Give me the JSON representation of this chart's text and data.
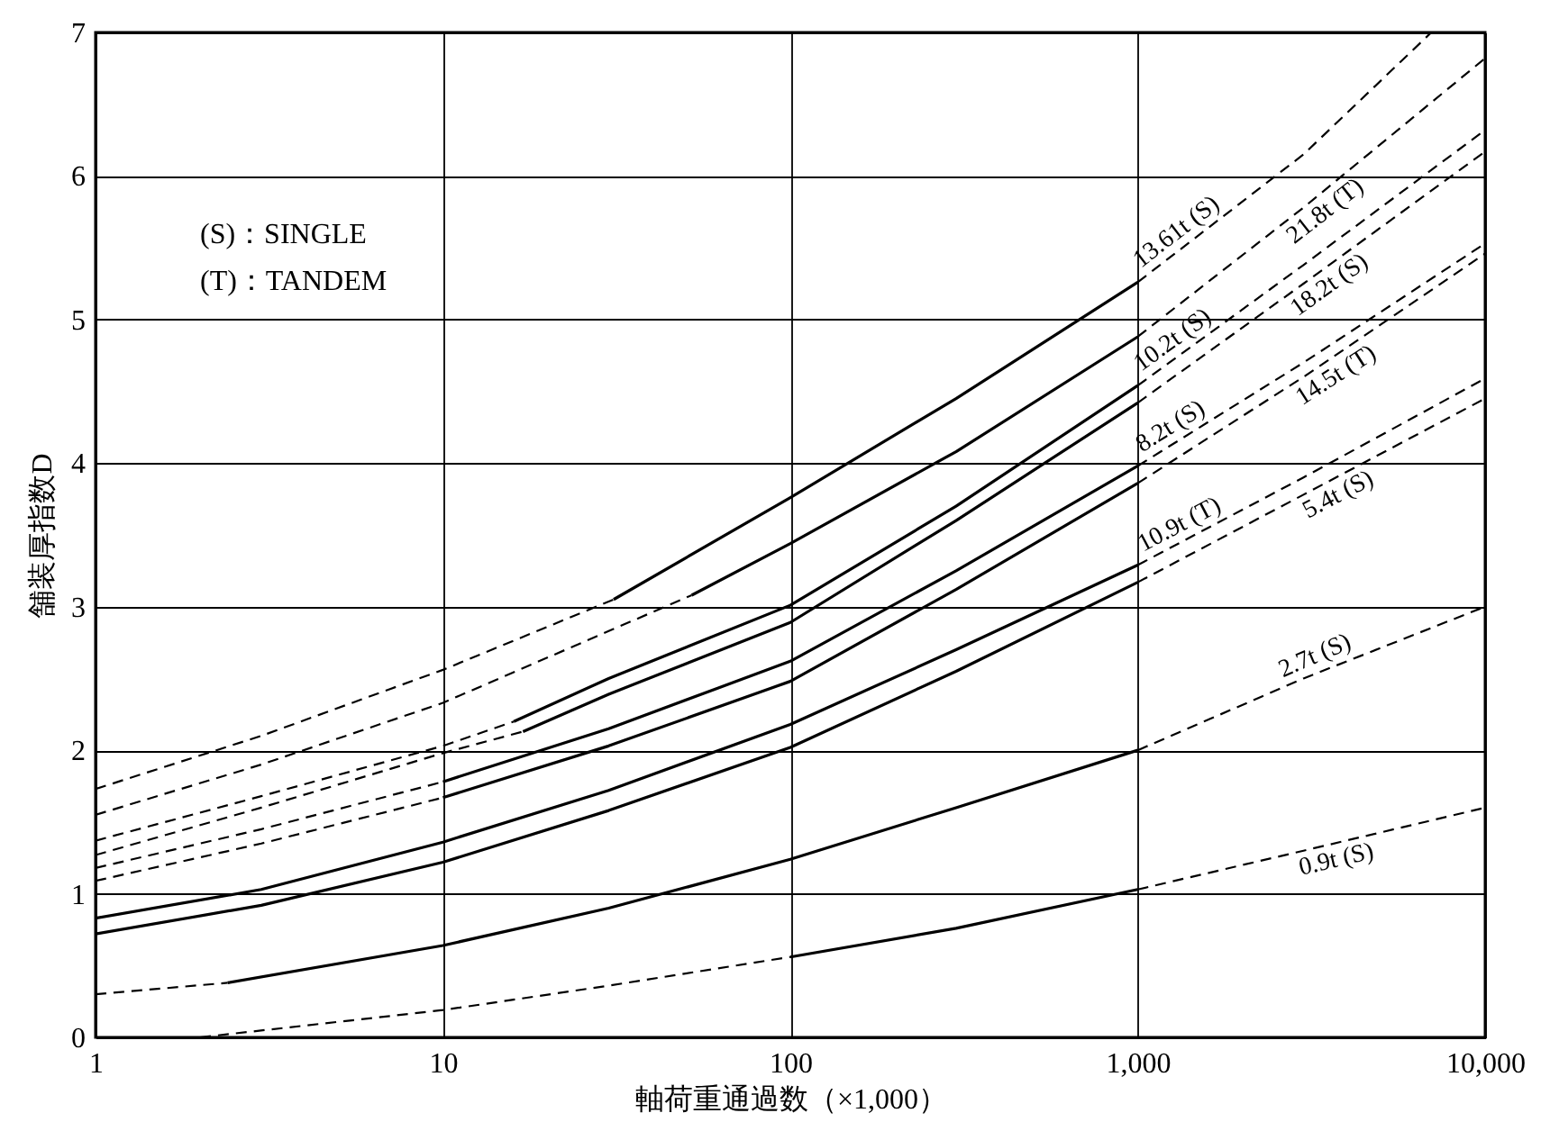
{
  "chart_data": {
    "type": "line",
    "xlabel": "軸荷重通過数（×1,000）",
    "ylabel": "舗装厚指数D",
    "log": "x",
    "grid": true,
    "marker": "none",
    "xlim": [
      1,
      10000
    ],
    "xticks": [
      1,
      10,
      100,
      {
        "value": 1000,
        "label": "1,000"
      },
      {
        "value": 10000,
        "label": "10,000"
      }
    ],
    "ylim": [
      0,
      7
    ],
    "yticks": [
      0,
      1,
      2,
      3,
      4,
      5,
      6,
      7
    ],
    "annotations": [
      "(S)：SINGLE",
      "(T)：TANDEM"
    ],
    "series": [
      {
        "color": "#000000",
        "line_style": "dashed",
        "x": [
          1,
          3,
          10,
          31
        ],
        "values": [
          1.73,
          2.1,
          2.56,
          3.05
        ]
      },
      {
        "color": "#000000",
        "line_style": "solid",
        "x": [
          31,
          100,
          300,
          1000
        ],
        "values": [
          3.05,
          3.76,
          4.45,
          5.26
        ]
      },
      {
        "name": "13.61t (S)",
        "color": "#000000",
        "line_style": "dashed",
        "x": [
          1000,
          3000,
          7000
        ],
        "values": [
          5.26,
          6.15,
          7.0
        ]
      },
      {
        "color": "#000000",
        "line_style": "dashed",
        "x": [
          1,
          3,
          10,
          30,
          52
        ],
        "values": [
          1.55,
          1.9,
          2.33,
          2.83,
          3.08
        ]
      },
      {
        "color": "#000000",
        "line_style": "solid",
        "x": [
          52,
          100,
          300,
          1000
        ],
        "values": [
          3.08,
          3.44,
          4.08,
          4.88
        ]
      },
      {
        "name": "21.8t (T)",
        "color": "#000000",
        "line_style": "dashed",
        "x": [
          1000,
          3000,
          10000
        ],
        "values": [
          4.88,
          5.78,
          6.82
        ]
      },
      {
        "color": "#000000",
        "line_style": "dashed",
        "x": [
          1,
          3,
          10,
          16
        ],
        "values": [
          1.37,
          1.68,
          2.03,
          2.2
        ]
      },
      {
        "color": "#000000",
        "line_style": "solid",
        "x": [
          16,
          30,
          100,
          300,
          1000
        ],
        "values": [
          2.2,
          2.5,
          3.01,
          3.7,
          4.54
        ]
      },
      {
        "name": "10.2t (S)",
        "color": "#000000",
        "line_style": "dashed",
        "x": [
          1000,
          3000,
          10000
        ],
        "values": [
          4.54,
          5.38,
          6.32
        ]
      },
      {
        "color": "#000000",
        "line_style": "dashed",
        "x": [
          1,
          3,
          10,
          17
        ],
        "values": [
          1.27,
          1.6,
          1.98,
          2.13
        ]
      },
      {
        "color": "#000000",
        "line_style": "solid",
        "x": [
          17,
          30,
          100,
          300,
          1000
        ],
        "values": [
          2.13,
          2.39,
          2.89,
          3.6,
          4.42
        ]
      },
      {
        "name": "18.2t (S)",
        "color": "#000000",
        "line_style": "dashed",
        "x": [
          1000,
          3000,
          10000
        ],
        "values": [
          4.42,
          5.25,
          6.17
        ]
      },
      {
        "color": "#000000",
        "line_style": "dashed",
        "x": [
          1,
          3,
          10
        ],
        "values": [
          1.18,
          1.45,
          1.78
        ]
      },
      {
        "color": "#000000",
        "line_style": "solid",
        "x": [
          10,
          30,
          100,
          300,
          1000
        ],
        "values": [
          1.78,
          2.15,
          2.62,
          3.25,
          3.98
        ]
      },
      {
        "name": "8.2t (S)",
        "color": "#000000",
        "line_style": "dashed",
        "x": [
          1000,
          3000,
          10000
        ],
        "values": [
          3.98,
          4.7,
          5.53
        ]
      },
      {
        "color": "#000000",
        "line_style": "dashed",
        "x": [
          1,
          3,
          10
        ],
        "values": [
          1.09,
          1.35,
          1.67
        ]
      },
      {
        "color": "#000000",
        "line_style": "solid",
        "x": [
          10,
          30,
          100,
          300,
          1000
        ],
        "values": [
          1.67,
          2.03,
          2.48,
          3.12,
          3.86
        ]
      },
      {
        "name": "14.5t (T)",
        "color": "#000000",
        "line_style": "dashed",
        "x": [
          1000,
          3000,
          10000
        ],
        "values": [
          3.86,
          4.6,
          5.46
        ]
      },
      {
        "color": "#000000",
        "line_style": "solid",
        "x": [
          1,
          3,
          10,
          30,
          100,
          300,
          1000
        ],
        "values": [
          0.83,
          1.03,
          1.36,
          1.72,
          2.18,
          2.7,
          3.29
        ]
      },
      {
        "name": "10.9t (T)",
        "color": "#000000",
        "line_style": "dashed",
        "x": [
          1000,
          3000,
          10000
        ],
        "values": [
          3.29,
          3.9,
          4.59
        ]
      },
      {
        "color": "#000000",
        "line_style": "solid",
        "x": [
          1,
          3,
          10,
          30,
          100,
          300,
          1000
        ],
        "values": [
          0.72,
          0.92,
          1.22,
          1.58,
          2.02,
          2.55,
          3.17
        ]
      },
      {
        "name": "5.4t (S)",
        "color": "#000000",
        "line_style": "dashed",
        "x": [
          1000,
          3000,
          10000
        ],
        "values": [
          3.17,
          3.78,
          4.45
        ]
      },
      {
        "color": "#000000",
        "line_style": "dashed",
        "x": [
          1,
          2.4
        ],
        "values": [
          0.3,
          0.38
        ]
      },
      {
        "color": "#000000",
        "line_style": "solid",
        "x": [
          2.4,
          10,
          30,
          100,
          300,
          1000
        ],
        "values": [
          0.38,
          0.64,
          0.9,
          1.24,
          1.6,
          2.0
        ]
      },
      {
        "name": "2.7t (S)",
        "color": "#000000",
        "line_style": "dashed",
        "x": [
          1000,
          3000,
          10000
        ],
        "values": [
          2.0,
          2.5,
          3.0
        ]
      },
      {
        "color": "#000000",
        "line_style": "dashed",
        "x": [
          2,
          10,
          30,
          100
        ],
        "values": [
          0,
          0.19,
          0.36,
          0.56
        ]
      },
      {
        "color": "#000000",
        "line_style": "solid",
        "x": [
          100,
          300,
          1000
        ],
        "values": [
          0.56,
          0.76,
          1.03
        ]
      },
      {
        "name": "0.9t (S)",
        "color": "#000000",
        "line_style": "dashed",
        "x": [
          1000,
          3000,
          10000
        ],
        "values": [
          1.03,
          1.3,
          1.6
        ]
      }
    ]
  }
}
